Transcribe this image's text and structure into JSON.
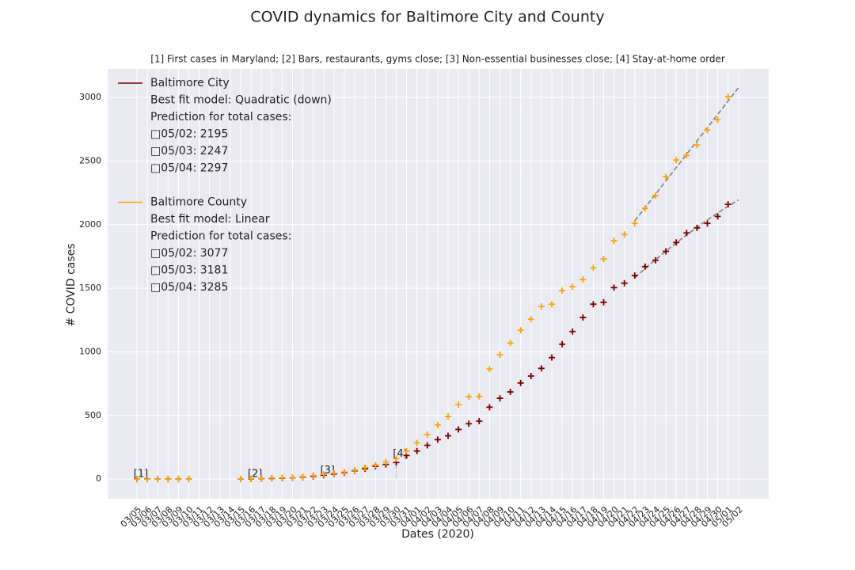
{
  "chart_data": {
    "type": "scatter",
    "title": "COVID dynamics for Baltimore City and County",
    "subtitle": "[1] First cases in Maryland; [2] Bars, restaurants, gyms close; [3] Non-essential businesses close; [4] Stay-at-home order",
    "x_label": "Dates (2020)",
    "y_label": "# COVID cases",
    "categories": [
      "03/05",
      "03/06",
      "03/07",
      "03/08",
      "03/09",
      "03/10",
      "03/11",
      "03/12",
      "03/13",
      "03/14",
      "03/15",
      "03/16",
      "03/17",
      "03/18",
      "03/19",
      "03/20",
      "03/21",
      "03/22",
      "03/23",
      "03/24",
      "03/25",
      "03/26",
      "03/27",
      "03/28",
      "03/29",
      "03/30",
      "03/31",
      "04/01",
      "04/02",
      "04/03",
      "04/04",
      "04/05",
      "04/06",
      "04/07",
      "04/08",
      "04/09",
      "04/10",
      "04/11",
      "04/12",
      "04/13",
      "04/14",
      "04/15",
      "04/16",
      "04/17",
      "04/18",
      "04/19",
      "04/20",
      "04/21",
      "04/22",
      "04/23",
      "04/24",
      "04/25",
      "04/26",
      "04/27",
      "04/28",
      "04/29",
      "04/30",
      "05/01",
      "05/02"
    ],
    "ylim": [
      -155,
      3225
    ],
    "yticks": [
      0,
      500,
      1000,
      1500,
      2000,
      2500,
      3000
    ],
    "grid": true,
    "legend": "upper left",
    "series": [
      {
        "name": "Baltimore City",
        "color": "#800000",
        "model": "Best fit model: Quadratic (down)",
        "prediction_title": "Prediction for total cases:",
        "predictions": [
          "□05/02: 2195",
          "□05/03: 2247",
          "□05/04: 2297"
        ],
        "values": [
          0,
          0,
          0,
          0,
          0,
          0,
          null,
          null,
          null,
          null,
          0,
          1,
          3,
          5,
          7,
          10,
          15,
          22,
          30,
          40,
          50,
          65,
          80,
          100,
          115,
          130,
          185,
          220,
          265,
          310,
          340,
          390,
          435,
          455,
          565,
          635,
          685,
          755,
          810,
          870,
          955,
          1060,
          1160,
          1270,
          1375,
          1390,
          1505,
          1540,
          1600,
          1670,
          1720,
          1790,
          1860,
          1935,
          1975,
          2010,
          2065,
          2160,
          null
        ],
        "fit": [
          null,
          null,
          null,
          null,
          null,
          null,
          null,
          null,
          null,
          null,
          null,
          null,
          null,
          null,
          null,
          null,
          null,
          null,
          null,
          null,
          null,
          null,
          null,
          null,
          null,
          null,
          null,
          null,
          null,
          null,
          null,
          null,
          null,
          null,
          null,
          null,
          null,
          null,
          null,
          null,
          null,
          null,
          null,
          null,
          null,
          null,
          null,
          null,
          1583,
          1655,
          1725,
          1792,
          1857,
          1919,
          1979,
          2037,
          2092,
          2145,
          2195
        ]
      },
      {
        "name": "Baltimore County",
        "color": "#ffa500",
        "model": "Best fit model: Linear",
        "prediction_title": "Prediction for total cases:",
        "predictions": [
          "□05/02: 3077",
          "□05/03: 3181",
          "□05/04: 3285"
        ],
        "values": [
          0,
          0,
          0,
          0,
          0,
          0,
          null,
          null,
          null,
          null,
          1,
          3,
          5,
          8,
          10,
          12,
          18,
          27,
          37,
          45,
          55,
          70,
          90,
          110,
          135,
          160,
          220,
          285,
          350,
          425,
          492,
          585,
          647,
          650,
          865,
          977,
          1070,
          1170,
          1257,
          1357,
          1375,
          1481,
          1512,
          1568,
          1661,
          1730,
          1873,
          1923,
          2010,
          2128,
          2228,
          2377,
          2508,
          2545,
          2626,
          2744,
          2825,
          3006,
          null
        ],
        "fit": [
          null,
          null,
          null,
          null,
          null,
          null,
          null,
          null,
          null,
          null,
          null,
          null,
          null,
          null,
          null,
          null,
          null,
          null,
          null,
          null,
          null,
          null,
          null,
          null,
          null,
          null,
          null,
          null,
          null,
          null,
          null,
          null,
          null,
          null,
          null,
          null,
          null,
          null,
          null,
          null,
          null,
          null,
          null,
          null,
          null,
          null,
          null,
          null,
          2030,
          2135,
          2239,
          2344,
          2449,
          2554,
          2658,
          2763,
          2868,
          2972,
          3077
        ]
      }
    ],
    "fit_color": "#808080",
    "annotations": [
      {
        "text": "[1]",
        "x": "03/05",
        "y": 0
      },
      {
        "text": "[2]",
        "x": "03/16",
        "y": 0
      },
      {
        "text": "[3]",
        "x": "03/23",
        "y": 30
      },
      {
        "text": "[4]",
        "x": "03/30",
        "y": 160
      }
    ]
  }
}
